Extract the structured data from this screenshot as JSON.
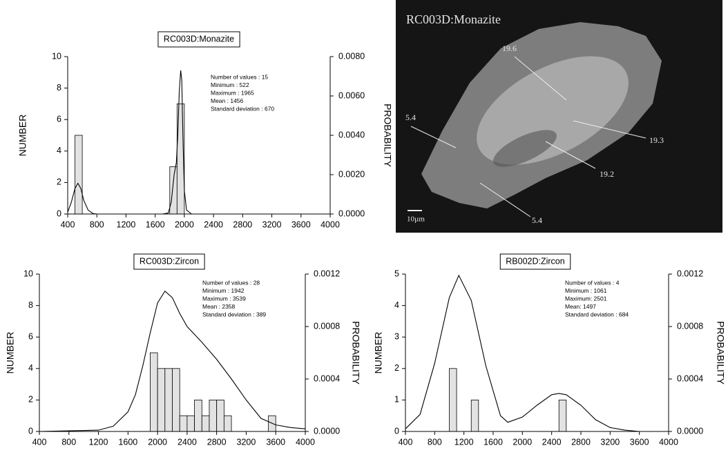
{
  "chart_data": [
    {
      "type": "histogram",
      "title": "RC003D:Monazite",
      "stats": [
        "Number of values : 15",
        "Minimum : 522",
        "Maximum : 1965",
        "Mean : 1456",
        "Standard deviation : 670"
      ],
      "ylabel": "NUMBER",
      "y2label": "PROBABILITY",
      "bins": [
        500,
        600,
        700,
        800,
        900,
        1000,
        1100,
        1200,
        1300,
        1400,
        1500,
        1600,
        1700,
        1800,
        1900,
        2000
      ],
      "values": [
        5,
        0,
        0,
        0,
        0,
        0,
        0,
        0,
        0,
        0,
        0,
        0,
        0,
        3,
        7
      ],
      "color": "#e2e2e2",
      "line": {
        "axis": "y2",
        "color": "#000000",
        "x": [
          400,
          450,
          500,
          540,
          580,
          620,
          680,
          750,
          800,
          1200,
          1700,
          1780,
          1820,
          1860,
          1890,
          1910,
          1930,
          1950,
          1965,
          1980,
          2000,
          2030,
          2100,
          3000,
          4000
        ],
        "values": [
          0.0001,
          0.0006,
          0.0013,
          0.00156,
          0.0013,
          0.0007,
          0.0002,
          2e-05,
          0,
          0,
          0,
          5e-05,
          0.0006,
          0.002,
          0.0026,
          0.004,
          0.0062,
          0.0073,
          0.0068,
          0.004,
          0.0012,
          0.0002,
          0,
          0,
          0
        ]
      },
      "xlim": [
        400,
        4000
      ],
      "xticks": [
        400,
        800,
        1200,
        1600,
        2000,
        2400,
        2800,
        3200,
        3600,
        4000
      ],
      "ylim": [
        0,
        10
      ],
      "yticks": [
        0,
        2,
        4,
        6,
        8,
        10
      ],
      "y2lim": [
        0,
        0.008
      ],
      "y2ticks": [
        {
          "value": 0,
          "label": "0.0000"
        },
        {
          "value": 0.002,
          "label": "0.0020"
        },
        {
          "value": 0.004,
          "label": "0.0040"
        },
        {
          "value": 0.006,
          "label": "0.0060"
        },
        {
          "value": 0.008,
          "label": "0.0080"
        }
      ]
    },
    {
      "type": "histogram",
      "title": "RC003D:Zircon",
      "stats": [
        "Number of values : 28",
        "Minimum : 1942",
        "Maximum : 3539",
        "Mean : 2358",
        "Standard deviation : 389"
      ],
      "ylabel": "NUMBER",
      "y2label": "PROBABILITY",
      "bins": [
        1900,
        2000,
        2100,
        2200,
        2300,
        2400,
        2500,
        2600,
        2700,
        2800,
        2900,
        3000,
        3100,
        3200,
        3300,
        3400,
        3500,
        3600
      ],
      "values": [
        5,
        4,
        4,
        4,
        1,
        1,
        2,
        1,
        2,
        2,
        1,
        0,
        0,
        0,
        0,
        0,
        1
      ],
      "color": "#e2e2e2",
      "line": {
        "axis": "y2",
        "color": "#000000",
        "x": [
          400,
          1200,
          1400,
          1600,
          1700,
          1800,
          1900,
          2000,
          2100,
          2200,
          2300,
          2400,
          2600,
          2800,
          3000,
          3200,
          3400,
          3600,
          3800,
          4000
        ],
        "values": [
          0,
          1e-05,
          4e-05,
          0.00015,
          0.00028,
          0.0005,
          0.00075,
          0.00098,
          0.00107,
          0.00102,
          0.0009,
          0.0008,
          0.00068,
          0.00055,
          0.0004,
          0.00024,
          0.0001,
          5e-05,
          3e-05,
          2e-05
        ]
      },
      "xlim": [
        400,
        4000
      ],
      "xticks": [
        400,
        800,
        1200,
        1600,
        2000,
        2400,
        2800,
        3200,
        3600,
        4000
      ],
      "ylim": [
        0,
        10
      ],
      "yticks": [
        0,
        2,
        4,
        6,
        8,
        10
      ],
      "y2lim": [
        0,
        0.0012
      ],
      "y2ticks": [
        {
          "value": 0,
          "label": "0.0000"
        },
        0.0004,
        0.0008,
        0.0012
      ]
    },
    {
      "type": "histogram",
      "title": "RB002D:Zircon",
      "stats": [
        "Number of values : 4",
        "Minimum : 1061",
        "Maximum: 2501",
        "Mean: 1497",
        "Standard deviation : 684"
      ],
      "ylabel": "NUMBER",
      "y2label": "PROBABILITY",
      "bins": [
        1000,
        1100,
        1200,
        1300,
        1400,
        1500,
        1600,
        1700,
        1800,
        1900,
        2000,
        2100,
        2200,
        2300,
        2400,
        2500,
        2600
      ],
      "values": [
        2,
        0,
        0,
        1,
        0,
        0,
        0,
        0,
        0,
        0,
        0,
        0,
        0,
        0,
        0,
        1
      ],
      "color": "#e2e2e2",
      "line": {
        "axis": "y2",
        "color": "#000000",
        "x": [
          400,
          600,
          800,
          1000,
          1130,
          1300,
          1500,
          1700,
          1800,
          2000,
          2200,
          2400,
          2500,
          2600,
          2800,
          3000,
          3200,
          3400,
          3600,
          4000
        ],
        "values": [
          2e-05,
          0.00013,
          0.00052,
          0.00102,
          0.00119,
          0.001,
          0.0005,
          0.00012,
          7e-05,
          0.00011,
          0.0002,
          0.00028,
          0.00029,
          0.00028,
          0.0002,
          9e-05,
          3e-05,
          1e-05,
          0,
          0
        ]
      },
      "xlim": [
        400,
        4000
      ],
      "xticks": [
        400,
        800,
        1200,
        1600,
        2000,
        2400,
        2800,
        3200,
        3600,
        4000
      ],
      "ylim": [
        0,
        5
      ],
      "yticks": [
        0,
        1,
        2,
        3,
        4,
        5
      ],
      "y2lim": [
        0,
        0.0012
      ],
      "y2ticks": [
        {
          "value": 0,
          "label": "0.0000"
        },
        0.0004,
        0.0008,
        0.0012
      ]
    }
  ],
  "image": {
    "title": "RC003D:Monazite",
    "labels": [
      "19.6",
      "5.4",
      "19.3",
      "19.2",
      "5.4"
    ],
    "scale": "10µm"
  }
}
